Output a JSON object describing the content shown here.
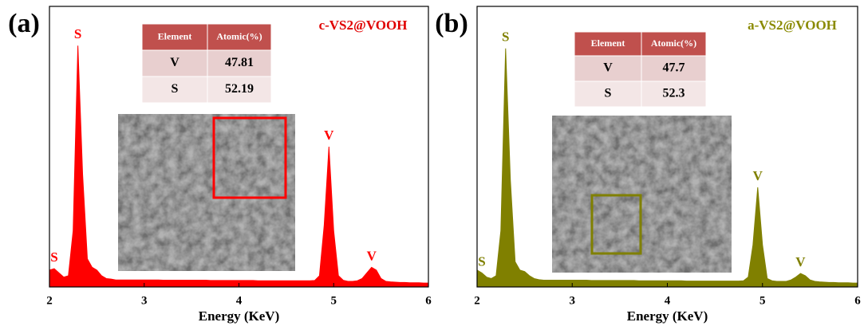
{
  "chart_data": [
    {
      "type": "area",
      "panel_label": "(a)",
      "title": "c-VS2@VOOH",
      "title_color": "#e00000",
      "xlabel": "Energy (KeV)",
      "xlim": [
        2,
        6
      ],
      "xticks": [
        2,
        3,
        4,
        5,
        6
      ],
      "ylim": [
        0,
        100
      ],
      "x": [
        2,
        2.05,
        2.1,
        2.15,
        2.2,
        2.25,
        2.3,
        2.35,
        2.4,
        2.45,
        2.5,
        2.55,
        2.6,
        2.65,
        2.7,
        2.75,
        2.8,
        2.85,
        2.9,
        2.95,
        3,
        3.05,
        3.1,
        3.15,
        3.2,
        3.25,
        3.3,
        3.35,
        3.4,
        3.45,
        3.5,
        3.55,
        3.6,
        3.65,
        3.7,
        3.75,
        3.8,
        3.85,
        3.9,
        3.95,
        4,
        4.05,
        4.1,
        4.15,
        4.2,
        4.25,
        4.3,
        4.35,
        4.4,
        4.45,
        4.5,
        4.55,
        4.6,
        4.65,
        4.7,
        4.75,
        4.8,
        4.85,
        4.9,
        4.95,
        5,
        5.05,
        5.1,
        5.15,
        5.2,
        5.25,
        5.3,
        5.35,
        5.4,
        5.45,
        5.5,
        5.55,
        5.6,
        5.65,
        5.7,
        5.75,
        5.8,
        5.85,
        5.9,
        5.95,
        6
      ],
      "series": [
        {
          "color": "#ff0000",
          "values": [
            6,
            6.5,
            5,
            3.5,
            4,
            20,
            86,
            40,
            10,
            7,
            6,
            4,
            3,
            2.8,
            2.5,
            2.5,
            2.5,
            2.5,
            2.5,
            2.5,
            2.5,
            2.5,
            2.5,
            2.5,
            2.4,
            2.4,
            2.4,
            2.4,
            2.4,
            2.4,
            2.4,
            2.4,
            2.4,
            2.4,
            2.3,
            2.3,
            2.3,
            2.3,
            2.3,
            2.3,
            2.3,
            2.3,
            2.3,
            2.3,
            2.2,
            2.2,
            2.2,
            2.2,
            2.2,
            2.2,
            2.2,
            2.2,
            2.2,
            2.2,
            2.2,
            2.2,
            2.3,
            4,
            22,
            50,
            20,
            4,
            2.4,
            2,
            2,
            2.2,
            3,
            5,
            7,
            6,
            3,
            2,
            1.8,
            1.7,
            1.6,
            1.6,
            1.5,
            1.5,
            1.5,
            1.4,
            1.4
          ]
        }
      ],
      "annotations": [
        {
          "text": "S",
          "x": 2.05
        },
        {
          "text": "S",
          "x": 2.3
        },
        {
          "text": "V",
          "x": 4.95
        },
        {
          "text": "V",
          "x": 5.4
        }
      ],
      "table": {
        "header": [
          "Element",
          "Atomic(%)"
        ],
        "rows": [
          [
            "V",
            47.81
          ],
          [
            "S",
            52.19
          ]
        ]
      }
    },
    {
      "type": "area",
      "panel_label": "(b)",
      "title": "a-VS2@VOOH",
      "title_color": "#8a8a00",
      "xlabel": "Energy (KeV)",
      "xlim": [
        2,
        6
      ],
      "xticks": [
        2,
        3,
        4,
        5,
        6
      ],
      "ylim": [
        0,
        100
      ],
      "x": [
        2,
        2.05,
        2.1,
        2.15,
        2.2,
        2.25,
        2.3,
        2.35,
        2.4,
        2.45,
        2.5,
        2.55,
        2.6,
        2.65,
        2.7,
        2.75,
        2.8,
        2.85,
        2.9,
        2.95,
        3,
        3.05,
        3.1,
        3.15,
        3.2,
        3.25,
        3.3,
        3.35,
        3.4,
        3.45,
        3.5,
        3.55,
        3.6,
        3.65,
        3.7,
        3.75,
        3.8,
        3.85,
        3.9,
        3.95,
        4,
        4.05,
        4.1,
        4.15,
        4.2,
        4.25,
        4.3,
        4.35,
        4.4,
        4.45,
        4.5,
        4.55,
        4.6,
        4.65,
        4.7,
        4.75,
        4.8,
        4.85,
        4.9,
        4.95,
        5,
        5.05,
        5.1,
        5.15,
        5.2,
        5.25,
        5.3,
        5.35,
        5.4,
        5.45,
        5.5,
        5.55,
        5.6,
        5.65,
        5.7,
        5.75,
        5.8,
        5.85,
        5.9,
        5.95,
        6
      ],
      "series": [
        {
          "color": "#808000",
          "values": [
            6,
            5,
            3.5,
            3,
            4,
            20,
            85,
            38,
            9,
            6,
            5.5,
            4,
            3,
            2.6,
            2.4,
            2.4,
            2.4,
            2.4,
            2.4,
            2.4,
            2.4,
            2.4,
            2.4,
            2.4,
            2.3,
            2.3,
            2.3,
            2.3,
            2.3,
            2.3,
            2.3,
            2.3,
            2.3,
            2.3,
            2.2,
            2.2,
            2.2,
            2.2,
            2.2,
            2.2,
            2.2,
            2.2,
            2.2,
            2.2,
            2.1,
            2.1,
            2.1,
            2.1,
            2.1,
            2.1,
            2.1,
            2.1,
            2.1,
            2.1,
            2.1,
            2.1,
            2.2,
            3.5,
            15,
            35.5,
            15,
            3,
            2.2,
            2,
            2,
            2,
            2.5,
            3.5,
            4.8,
            4,
            2.5,
            2,
            1.8,
            1.7,
            1.6,
            1.6,
            1.5,
            1.5,
            1.5,
            1.4,
            1.4
          ]
        }
      ],
      "annotations": [
        {
          "text": "S",
          "x": 2.05
        },
        {
          "text": "S",
          "x": 2.3
        },
        {
          "text": "V",
          "x": 4.95
        },
        {
          "text": "V",
          "x": 5.4
        }
      ],
      "table": {
        "header": [
          "Element",
          "Atomic(%)"
        ],
        "rows": [
          [
            "V",
            47.7
          ],
          [
            "S",
            52.3
          ]
        ]
      }
    }
  ]
}
